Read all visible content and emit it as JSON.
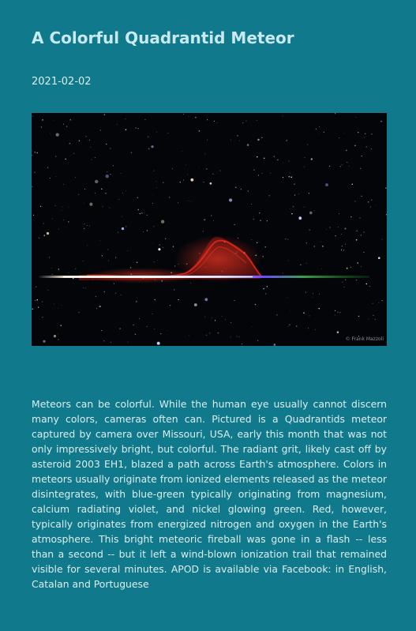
{
  "article": {
    "title": "A Colorful Quadrantid Meteor",
    "date": "2021-02-02",
    "image_credit": "© Frank Mazzoli",
    "explanation": "Meteors can be colorful. While the human eye usually cannot discern many colors, cameras often can. Pictured is a Quadrantids meteor captured by camera over Missouri, USA, early this month that was not only impressively bright, but colorful. The radiant grit, likely cast off by asteroid 2003 EH1, blazed a path across Earth's atmosphere. Colors in meteors usually originate from ionized elements released as the meteor disintegrates, with blue-green typically originating from magnesium, calcium radiating violet, and nickel glowing green. Red, however, typically originates from energized nitrogen and oxygen in the Earth's atmosphere. This bright meteoric fireball was gone in a flash -- less than a second -- but it left a wind-blown ionization trail that remained visible for several minutes. APOD is available via Facebook: in English, Catalan and Portuguese"
  },
  "colors": {
    "background": "#10798b",
    "title": "#c8e9ef",
    "text": "#dceef1",
    "sky": "#040509"
  }
}
